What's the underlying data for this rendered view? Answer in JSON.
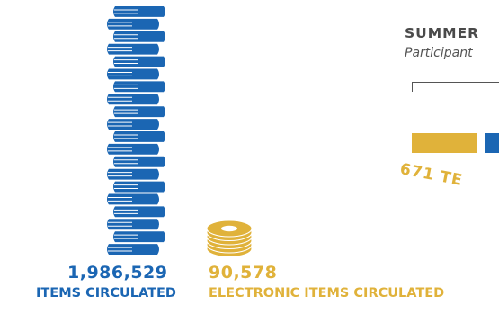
{
  "stats": {
    "items_circulated": {
      "value": "1,986,529",
      "label": "ITEMS CIRCULATED"
    },
    "electronic_items_circulated": {
      "value": "90,578",
      "label": "ELECTRONIC ITEMS CIRCULATED"
    }
  },
  "summer_panel": {
    "title": "SUMMER",
    "subtitle": "Participant",
    "teen_label": "671 TE"
  },
  "colors": {
    "blue": "#1b66b3",
    "gold": "#e0b23a",
    "text_gray": "#4a4a4a"
  },
  "icons": {
    "book_stack": "book-stack-icon",
    "disc_stack": "disc-stack-icon"
  }
}
